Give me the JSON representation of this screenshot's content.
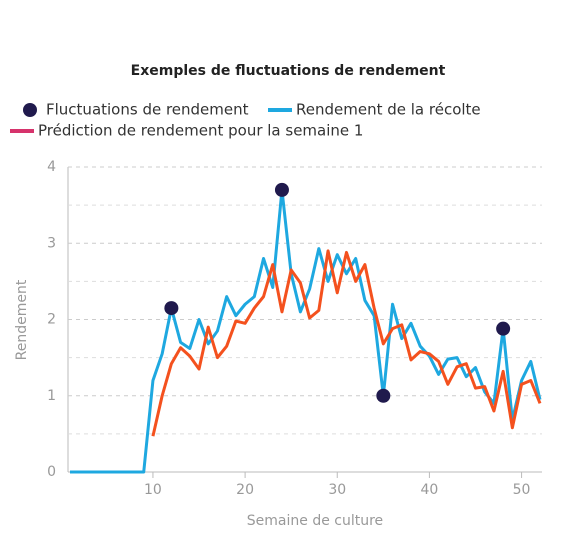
{
  "chart_data": {
    "type": "line",
    "title": "Exemples de fluctuations de rendement",
    "x_label": "Semaine de culture",
    "y_label": "Rendement",
    "x": [
      1,
      2,
      3,
      4,
      5,
      6,
      7,
      8,
      9,
      10,
      11,
      12,
      13,
      14,
      15,
      16,
      17,
      18,
      19,
      20,
      21,
      22,
      23,
      24,
      25,
      26,
      27,
      28,
      29,
      30,
      31,
      32,
      33,
      34,
      35,
      36,
      37,
      38,
      39,
      40,
      41,
      42,
      43,
      44,
      45,
      46,
      47,
      48,
      49,
      50,
      51,
      52
    ],
    "xlim": [
      1,
      52
    ],
    "xticks": [
      10,
      20,
      30,
      40,
      50
    ],
    "ylim": [
      0,
      4
    ],
    "yticks": [
      0,
      1,
      2,
      3,
      4
    ],
    "grid_minor": [
      0.5,
      1.5,
      2.5,
      3.5
    ],
    "grid": true,
    "series": [
      {
        "name": "Fluctuations de rendement",
        "type": "scatter",
        "color": "#201a4d",
        "x": [
          12,
          24,
          35,
          48
        ],
        "values": [
          2.15,
          3.7,
          1.0,
          1.88
        ]
      },
      {
        "name": "Rendement de la récolte",
        "type": "line",
        "color": "#1ea8e0",
        "values": [
          0,
          0,
          0,
          0,
          0,
          0,
          0,
          0,
          0,
          1.2,
          1.55,
          2.15,
          1.7,
          1.62,
          2.0,
          1.68,
          1.85,
          2.3,
          2.05,
          2.2,
          2.3,
          2.8,
          2.42,
          3.7,
          2.6,
          2.1,
          2.4,
          2.93,
          2.5,
          2.85,
          2.6,
          2.8,
          2.25,
          2.05,
          1.0,
          2.2,
          1.75,
          1.95,
          1.65,
          1.52,
          1.28,
          1.48,
          1.5,
          1.25,
          1.37,
          1.05,
          0.9,
          1.88,
          0.68,
          1.2,
          1.45,
          0.95
        ]
      },
      {
        "name": "Prédiction de rendement pour la semaine 1",
        "type": "line",
        "color": "#f4511e",
        "legend_color": "#d6336c",
        "values": [
          null,
          null,
          null,
          null,
          null,
          null,
          null,
          null,
          null,
          0.47,
          1.0,
          1.42,
          1.63,
          1.52,
          1.35,
          1.9,
          1.5,
          1.65,
          1.98,
          1.95,
          2.15,
          2.3,
          2.72,
          2.1,
          2.65,
          2.48,
          2.02,
          2.12,
          2.9,
          2.35,
          2.88,
          2.5,
          2.72,
          2.15,
          1.68,
          1.88,
          1.93,
          1.47,
          1.58,
          1.55,
          1.45,
          1.15,
          1.38,
          1.42,
          1.1,
          1.12,
          0.8,
          1.32,
          0.58,
          1.15,
          1.2,
          0.9
        ]
      }
    ]
  }
}
